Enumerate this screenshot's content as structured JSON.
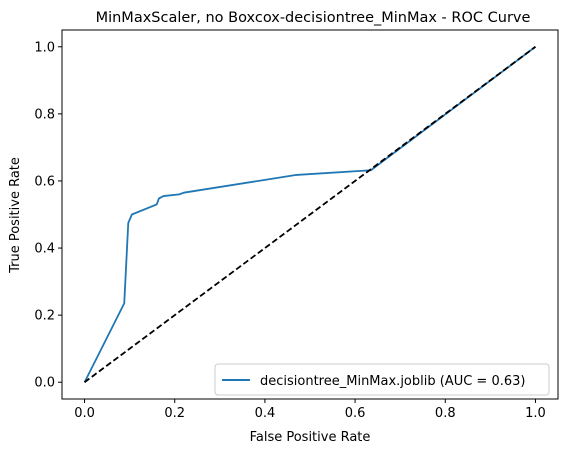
{
  "chart_data": {
    "type": "line",
    "title": "MinMaxScaler, no Boxcox-decisiontree_MinMax - ROC Curve",
    "xlabel": "False Positive Rate",
    "ylabel": "True Positive Rate",
    "xlim": [
      -0.05,
      1.05
    ],
    "ylim": [
      -0.05,
      1.05
    ],
    "xticks": [
      "0.0",
      "0.2",
      "0.4",
      "0.6",
      "0.8",
      "1.0"
    ],
    "yticks": [
      "0.0",
      "0.2",
      "0.4",
      "0.6",
      "0.8",
      "1.0"
    ],
    "legend_position": "lower-right",
    "grid": false,
    "series": [
      {
        "name": "decisiontree_MinMax.joblib (AUC = 0.63)",
        "color": "#1f77b4",
        "style": "solid",
        "x": [
          0.0,
          0.088,
          0.097,
          0.105,
          0.16,
          0.165,
          0.175,
          0.21,
          0.22,
          0.47,
          0.635,
          1.0
        ],
        "y": [
          0.0,
          0.235,
          0.475,
          0.5,
          0.53,
          0.548,
          0.555,
          0.56,
          0.565,
          0.618,
          0.632,
          1.0
        ]
      },
      {
        "name": "",
        "color": "#000000",
        "style": "dashed",
        "x": [
          0.0,
          1.0
        ],
        "y": [
          0.0,
          1.0
        ]
      }
    ]
  }
}
